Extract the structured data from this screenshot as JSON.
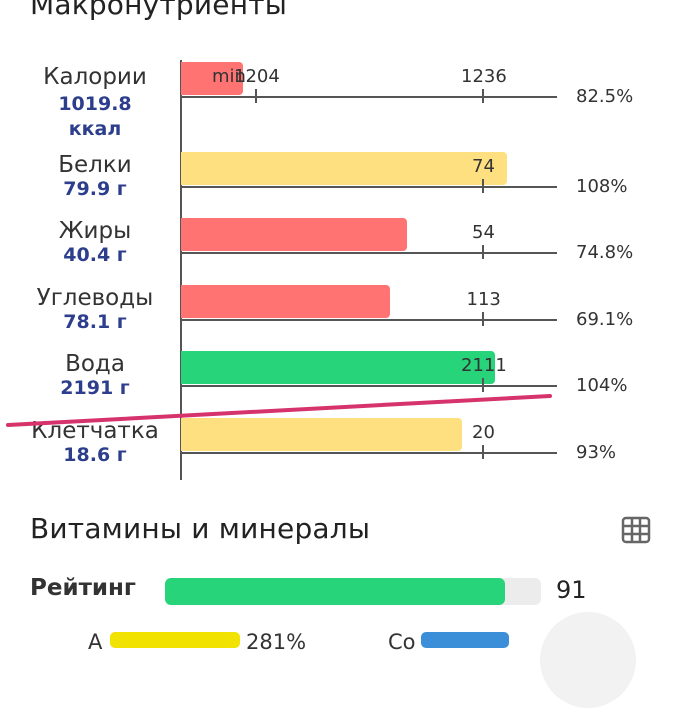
{
  "macro": {
    "title": "Макронутриенты",
    "rows": [
      {
        "name": "Калории",
        "value": "1019.8",
        "unit": "ккал",
        "ratio": 0.825,
        "color": "#ff7373",
        "ticks": [
          {
            "label": "min",
            "tick": false
          },
          {
            "label": "1204",
            "tick": true
          },
          {
            "label": "1236",
            "tick": true
          }
        ],
        "percent": "82.5%"
      },
      {
        "name": "Белки",
        "value": "79.9 г",
        "ratio": 1.08,
        "color": "#ffe080",
        "ticks": [
          {
            "label": "74",
            "tick": true
          }
        ],
        "percent": "108%"
      },
      {
        "name": "Жиры",
        "value": "40.4 г",
        "ratio": 0.748,
        "color": "#ff7373",
        "ticks": [
          {
            "label": "54",
            "tick": true
          }
        ],
        "percent": "74.8%"
      },
      {
        "name": "Углеводы",
        "value": "78.1 г",
        "ratio": 0.691,
        "color": "#ff7373",
        "ticks": [
          {
            "label": "113",
            "tick": true
          }
        ],
        "percent": "69.1%"
      },
      {
        "name": "Вода",
        "value": "2191 г",
        "ratio": 1.04,
        "color": "#27d47a",
        "ticks": [
          {
            "label": "2111",
            "tick": true
          }
        ],
        "percent": "104%"
      },
      {
        "name": "Клетчатка",
        "value": "18.6 г",
        "ratio": 0.93,
        "color": "#ffe080",
        "ticks": [
          {
            "label": "20",
            "tick": true
          }
        ],
        "percent": "93%"
      }
    ]
  },
  "vitamins": {
    "title": "Витамины и минералы",
    "table_icon": "table-icon",
    "rating_label": "Рейтинг",
    "rating_value": "91",
    "rating_ratio": 0.91,
    "rating_color": "#27d47a",
    "items": [
      {
        "label": "A",
        "percent": "281%",
        "color": "#f2e200"
      },
      {
        "label": "Co",
        "percent": "",
        "color": "#3b8fd8"
      }
    ]
  },
  "annotation": {
    "color": "#d6336c"
  }
}
